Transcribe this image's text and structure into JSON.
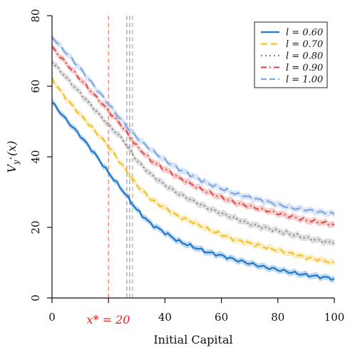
{
  "chart_data": {
    "type": "line",
    "title": "",
    "xlabel": "Initial Capital",
    "ylabel": "V_{y*}(x)",
    "ylabel_display": {
      "main": "V",
      "sub": "y",
      "supsub": "⋆",
      "arg": "(x)"
    },
    "xlim": [
      0,
      100
    ],
    "ylim": [
      0,
      80
    ],
    "xticks": [
      0,
      20,
      40,
      60,
      80,
      100
    ],
    "xtick_labels": [
      "0",
      "",
      "40",
      "60",
      "80",
      "100"
    ],
    "yticks": [
      0,
      20,
      40,
      60,
      80
    ],
    "ytick_labels": [
      "0",
      "20",
      "40",
      "60",
      "80"
    ],
    "legend_position": "top-right",
    "grid": false,
    "x": [
      0,
      5,
      10,
      15,
      20,
      25,
      30,
      35,
      40,
      45,
      50,
      55,
      60,
      65,
      70,
      75,
      80,
      85,
      90,
      95,
      100
    ],
    "series": [
      {
        "name": "l = 0.60",
        "color": "#1f77c8",
        "dash": "solid",
        "values": [
          55.5,
          50.5,
          46.0,
          41.0,
          35.5,
          30.5,
          25.0,
          21.0,
          18.5,
          16.0,
          14.5,
          13.0,
          12.0,
          10.8,
          9.8,
          8.8,
          8.0,
          7.2,
          6.5,
          6.0,
          5.5
        ]
      },
      {
        "name": "l = 0.70",
        "color": "#f2c12e",
        "dash": "dashed",
        "values": [
          62.0,
          56.5,
          52.0,
          47.5,
          43.0,
          37.5,
          32.0,
          28.0,
          25.5,
          23.0,
          21.5,
          19.5,
          18.0,
          16.5,
          15.5,
          14.5,
          13.5,
          12.5,
          11.5,
          10.8,
          10.0
        ]
      },
      {
        "name": "l = 0.80",
        "color": "#8a8a8a",
        "dash": "dotted",
        "values": [
          67.0,
          62.5,
          58.0,
          53.5,
          49.0,
          45.0,
          39.0,
          35.0,
          32.0,
          29.5,
          27.5,
          25.5,
          24.0,
          22.5,
          21.0,
          20.0,
          19.0,
          18.0,
          17.0,
          16.2,
          15.5
        ]
      },
      {
        "name": "l = 0.90",
        "color": "#d9534f",
        "dash": "dashdot",
        "values": [
          71.0,
          66.5,
          62.0,
          57.5,
          53.0,
          48.5,
          43.0,
          39.0,
          36.5,
          34.0,
          32.0,
          30.0,
          28.5,
          27.0,
          26.0,
          25.0,
          24.0,
          23.0,
          22.0,
          21.5,
          20.8
        ]
      },
      {
        "name": "l = 1.00",
        "color": "#7fa7e0",
        "dash": "longdash",
        "values": [
          74.0,
          69.5,
          65.0,
          60.0,
          55.0,
          50.0,
          45.5,
          42.0,
          39.0,
          36.5,
          34.5,
          32.5,
          31.0,
          29.5,
          28.5,
          27.5,
          26.5,
          25.5,
          25.0,
          24.3,
          23.8
        ]
      }
    ],
    "vlines": [
      {
        "x": 20,
        "color": "#f08a7a",
        "dash": "dashed"
      },
      {
        "x": 26.5,
        "color": "#b0a0d8",
        "dash": "dashed"
      },
      {
        "x": 27.5,
        "color": "#a8a8a8",
        "dash": "dashed"
      },
      {
        "x": 28.5,
        "color": "#9fce8f",
        "dash": "dashed"
      }
    ],
    "annotation": {
      "text": "x* = 20",
      "x": 20,
      "color": "#e8231f"
    }
  }
}
